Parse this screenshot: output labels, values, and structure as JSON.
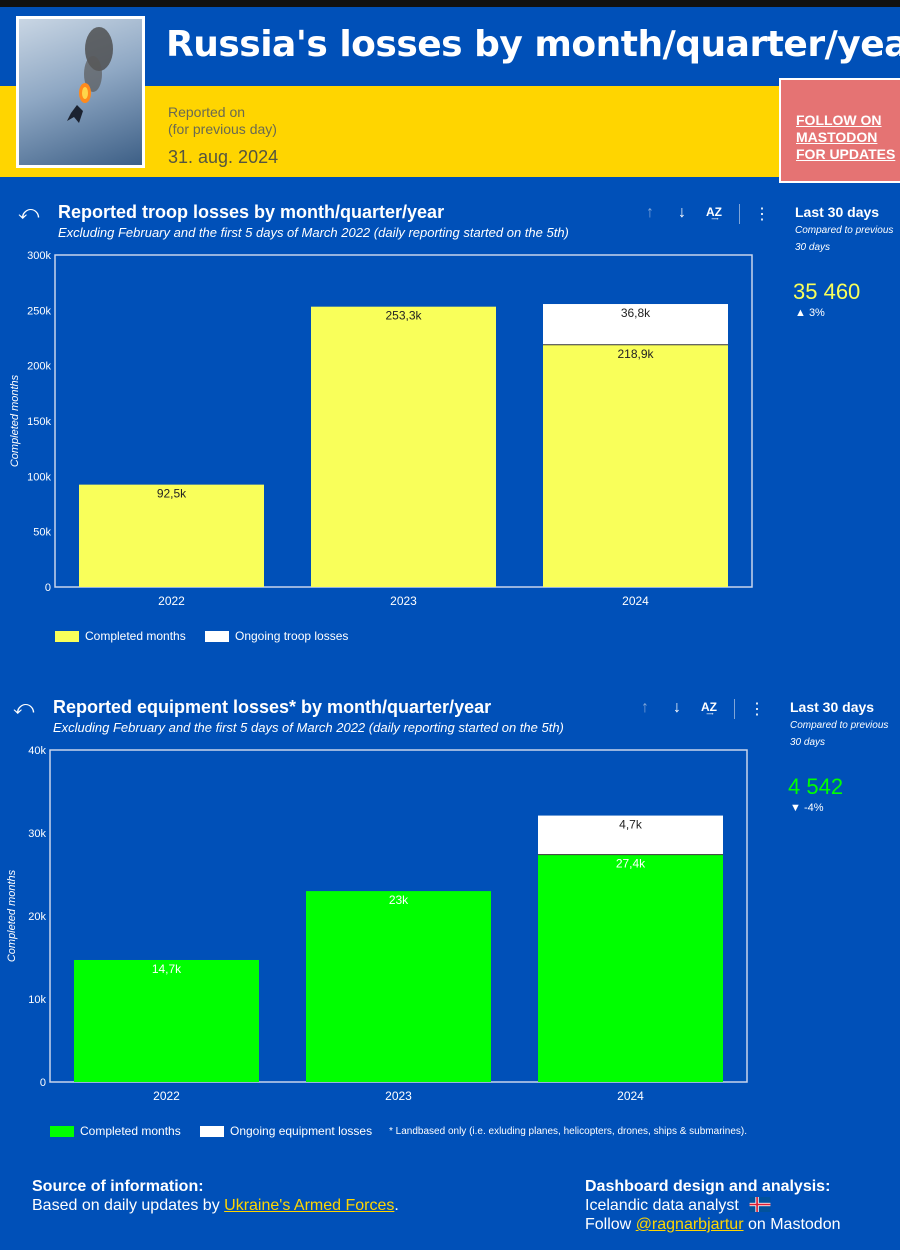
{
  "header": {
    "title": "Russia's losses by month/quarter/year",
    "reported_line1": "Reported on",
    "reported_line2": "(for previous day)",
    "date": "31. aug. 2024",
    "follow_label": "FOLLOW ON MASTODON FOR UPDATES"
  },
  "colors": {
    "brand_blue": "#0050b8",
    "yellow": "#ffd500",
    "troop_bar": "#f9ff5a",
    "equipment_bar": "#00ff00",
    "ongoing": "#ffffff",
    "follow_bg": "#e57373"
  },
  "troop_panel": {
    "title": "Reported troop losses by month/quarter/year",
    "subtitle": "Excluding February and the first 5 days of March 2022 (daily reporting started on the 5th)",
    "kpi": {
      "title": "Last 30 days",
      "subtitle": "Compared to previous 30 days",
      "value": "35 460",
      "delta": "▲ 3%"
    },
    "legend": [
      "Completed months",
      "Ongoing troop losses"
    ]
  },
  "equipment_panel": {
    "title": "Reported equipment losses* by month/quarter/year",
    "subtitle": "Excluding February and the first 5 days of March 2022 (daily reporting started on the 5th)",
    "kpi": {
      "title": "Last 30 days",
      "subtitle": "Compared to previous 30 days",
      "value": "4 542",
      "delta": "▼ -4%"
    },
    "legend": [
      "Completed months",
      "Ongoing equipment losses"
    ],
    "footnote": "* Landbased only (i.e. exluding planes, helicopters, drones, ships & submarines)."
  },
  "chart_data": [
    {
      "type": "bar",
      "stacked": true,
      "categories": [
        "2022",
        "2023",
        "2024"
      ],
      "series": [
        {
          "name": "Completed months",
          "values": [
            92500,
            253300,
            218900
          ],
          "labels": [
            "92,5k",
            "253,3k",
            "218,9k"
          ],
          "color": "#f9ff5a"
        },
        {
          "name": "Ongoing troop losses",
          "values": [
            0,
            0,
            36800
          ],
          "labels": [
            "",
            "",
            "36,8k"
          ],
          "color": "#ffffff"
        }
      ],
      "ylabel": "Completed months",
      "ylim": [
        0,
        300000
      ],
      "yticks": [
        0,
        50000,
        100000,
        150000,
        200000,
        250000,
        300000
      ],
      "ytick_labels": [
        "0",
        "50k",
        "100k",
        "150k",
        "200k",
        "250k",
        "300k"
      ],
      "legend": "bottom-left",
      "grid": false
    },
    {
      "type": "bar",
      "stacked": true,
      "categories": [
        "2022",
        "2023",
        "2024"
      ],
      "series": [
        {
          "name": "Completed months",
          "values": [
            14700,
            23000,
            27400
          ],
          "labels": [
            "14,7k",
            "23k",
            "27,4k"
          ],
          "color": "#00ff00"
        },
        {
          "name": "Ongoing equipment losses",
          "values": [
            0,
            0,
            4700
          ],
          "labels": [
            "",
            "",
            "4,7k"
          ],
          "color": "#ffffff"
        }
      ],
      "ylabel": "Completed months",
      "ylim": [
        0,
        40000
      ],
      "yticks": [
        0,
        10000,
        20000,
        30000,
        40000
      ],
      "ytick_labels": [
        "0",
        "10k",
        "20k",
        "30k",
        "40k"
      ],
      "legend": "bottom-left",
      "grid": false
    }
  ],
  "footer": {
    "source_heading": "Source of information:",
    "source_text": "Based on daily updates by",
    "source_link": "Ukraine's Armed Forces",
    "source_end": ".",
    "design_heading": "Dashboard design and analysis:",
    "design_text": "Icelandic data analyst",
    "follow_prefix": "Follow",
    "follow_link": "@ragnarbjartur",
    "follow_suffix": "on Mastodon"
  }
}
